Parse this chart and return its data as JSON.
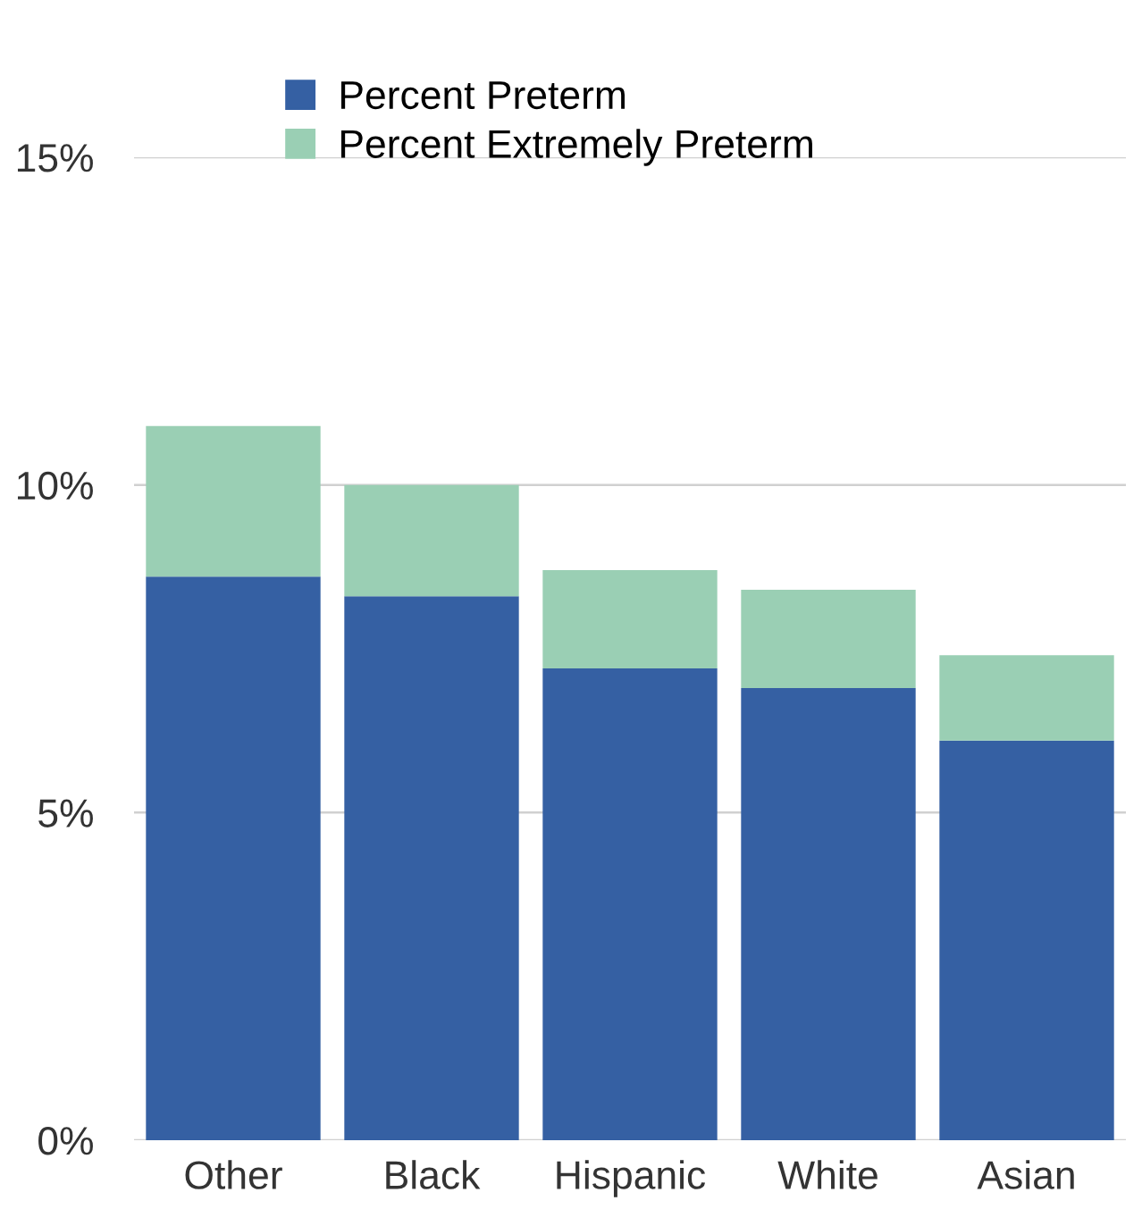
{
  "chart_data": {
    "type": "bar",
    "stacked": true,
    "categories": [
      "Other",
      "Black",
      "Hispanic",
      "White",
      "Asian"
    ],
    "series": [
      {
        "name": "Percent Preterm",
        "color": "#3560a3",
        "values": [
          8.6,
          8.3,
          7.2,
          6.9,
          6.1
        ]
      },
      {
        "name": "Percent Extremely Preterm",
        "color": "#9acfb4",
        "values": [
          2.3,
          1.7,
          1.5,
          1.5,
          1.3
        ]
      }
    ],
    "ylim": [
      0,
      15
    ],
    "yticks": [
      {
        "value": 0,
        "label": "0%"
      },
      {
        "value": 5,
        "label": "5%"
      },
      {
        "value": 10,
        "label": "10%"
      },
      {
        "value": 15,
        "label": "15%"
      }
    ],
    "grid": "y",
    "legend": "top"
  }
}
